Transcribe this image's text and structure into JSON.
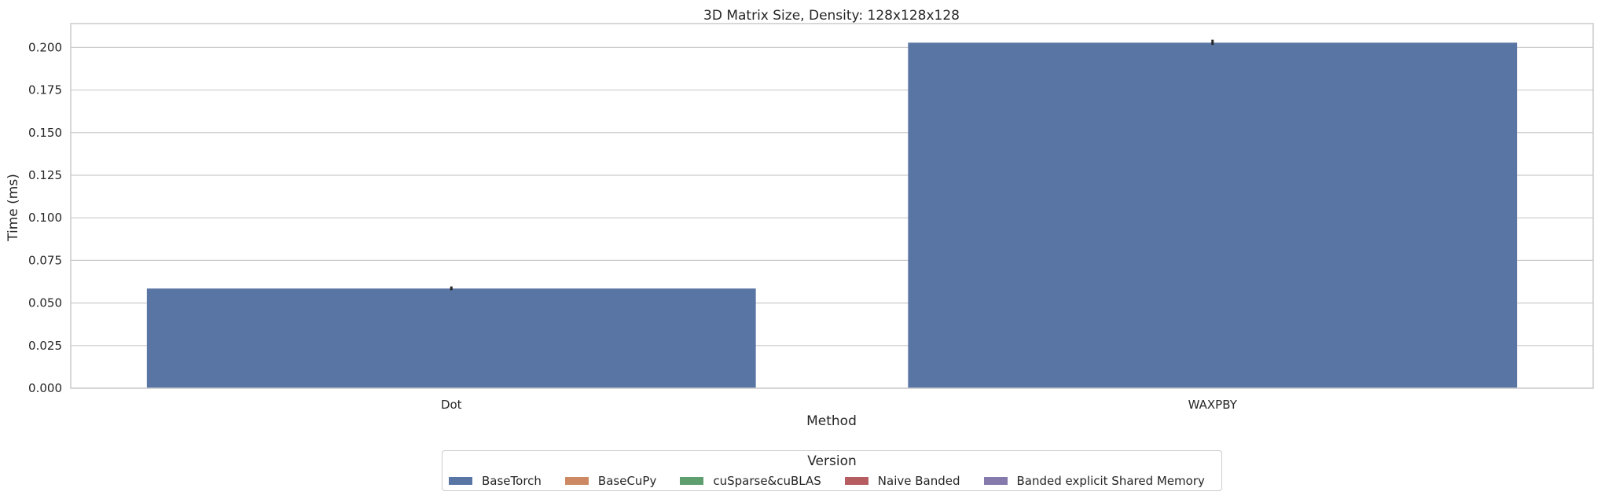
{
  "chart_data": {
    "type": "bar",
    "title": "3D Matrix Size, Density: 128x128x128",
    "xlabel": "Method",
    "ylabel": "Time (ms)",
    "categories": [
      "Dot",
      "WAXPBY"
    ],
    "ylim": [
      0,
      0.214
    ],
    "yticks": [
      "0.000",
      "0.025",
      "0.050",
      "0.075",
      "0.100",
      "0.125",
      "0.150",
      "0.175",
      "0.200"
    ],
    "grid": true,
    "legend_title": "Version",
    "legend_position": "bottom-center",
    "series": [
      {
        "name": "BaseTorch",
        "color": "#5975a4",
        "values": [
          0.0585,
          0.2028
        ],
        "error": [
          [
            0.0575,
            0.0597
          ],
          [
            0.2015,
            0.2045
          ]
        ]
      },
      {
        "name": "BaseCuPy",
        "color": "#cc8963",
        "values": [
          null,
          null
        ]
      },
      {
        "name": "cuSparse&cuBLAS",
        "color": "#5f9e6e",
        "values": [
          null,
          null
        ]
      },
      {
        "name": "Naive Banded",
        "color": "#b55d60",
        "values": [
          null,
          null
        ]
      },
      {
        "name": "Banded explicit Shared Memory",
        "color": "#857aab",
        "values": [
          null,
          null
        ]
      }
    ]
  }
}
